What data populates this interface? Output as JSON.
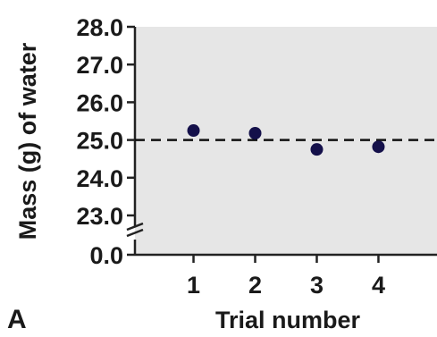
{
  "panel_label": "A",
  "chart_data": {
    "type": "scatter",
    "title": "",
    "xlabel": "Trial number",
    "ylabel": "Mass (g) of water",
    "x": [
      1,
      2,
      3,
      4
    ],
    "series": [
      {
        "values": [
          25.25,
          25.18,
          24.75,
          24.82
        ],
        "color": "#14104a"
      }
    ],
    "x_ticks": [
      "1",
      "2",
      "3",
      "4"
    ],
    "y_ticks": [
      "28.0",
      "27.0",
      "26.0",
      "25.0",
      "24.0",
      "23.0",
      "0.0"
    ],
    "y_tick_values": [
      28,
      27,
      26,
      25,
      24,
      23
    ],
    "ylim": [
      23,
      28
    ],
    "xlim": [
      0.05,
      4.95
    ],
    "axis_break": true,
    "reference_line": {
      "y": 25.0,
      "style": "dashed"
    },
    "plot_background": "#e6e6e6",
    "grid": false
  }
}
